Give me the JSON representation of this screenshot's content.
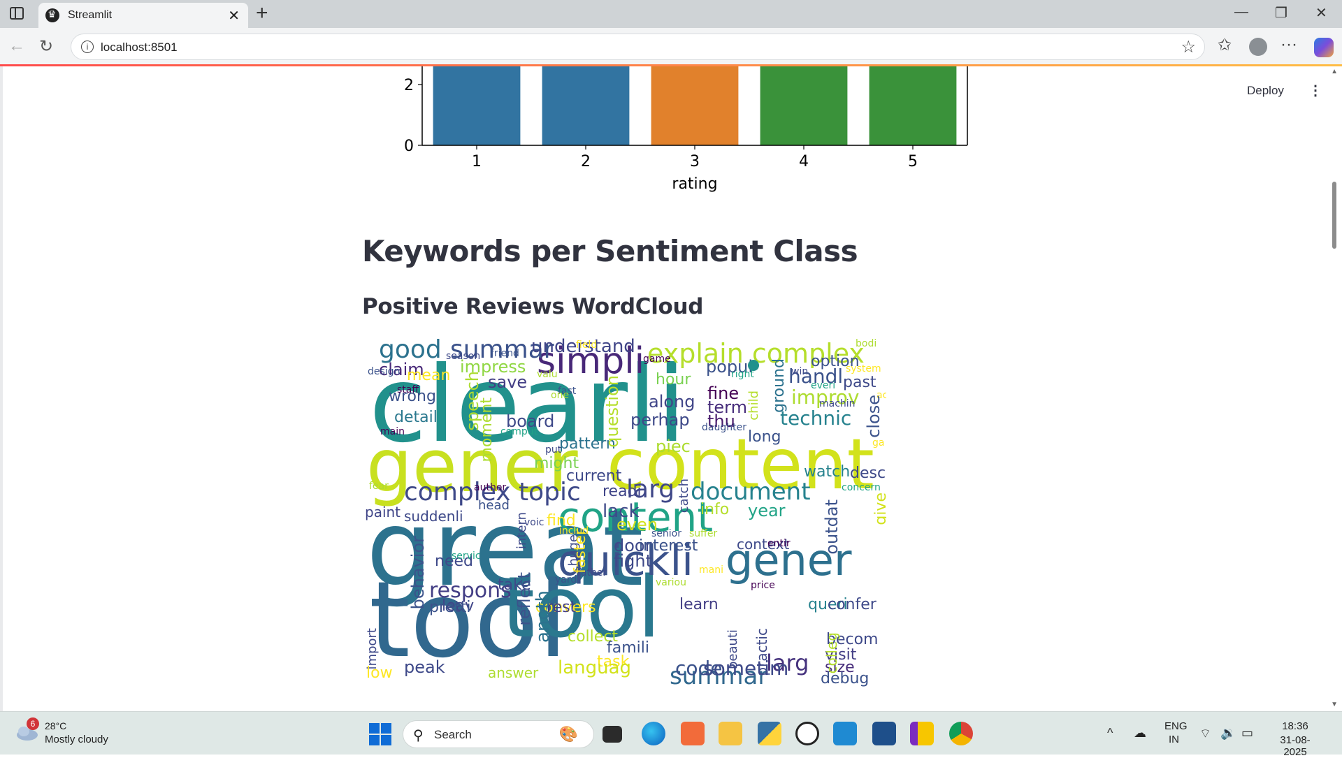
{
  "browser": {
    "tab_title": "Streamlit",
    "url": "localhost:8501"
  },
  "app": {
    "deploy_label": "Deploy",
    "heading": "Keywords per Sentiment Class",
    "subheading": "Positive Reviews WordCloud"
  },
  "chart_data": {
    "type": "bar",
    "categories": [
      "1",
      "2",
      "3",
      "4",
      "5"
    ],
    "values": [
      2.6,
      2.6,
      2.6,
      2.6,
      2.6
    ],
    "colors": [
      "#3274a1",
      "#3274a1",
      "#e1812c",
      "#3a923a",
      "#3a923a"
    ],
    "xlabel": "rating",
    "ylabel": "",
    "yticks": [
      "0",
      "2"
    ],
    "ylim": [
      0,
      2.6
    ],
    "note_partial": "top of chart scrolled out of view"
  },
  "wordcloud": {
    "words": [
      {
        "t": "clearli",
        "c": "#21918c"
      },
      {
        "t": "gener",
        "c": "#c8e020"
      },
      {
        "t": "content",
        "c": "#d2e21b"
      },
      {
        "t": "great",
        "c": "#2c728e"
      },
      {
        "t": "tool",
        "c": "#31688e"
      },
      {
        "t": "tool",
        "c": "#2a788e"
      },
      {
        "t": "gener",
        "c": "#2d708e"
      },
      {
        "t": "quickli",
        "c": "#3b528b"
      },
      {
        "t": "content",
        "c": "#20a386"
      },
      {
        "t": "simpli",
        "c": "#482878"
      },
      {
        "t": "explain complex",
        "c": "#b5de2b"
      },
      {
        "t": "complex topic",
        "c": "#3e4989"
      },
      {
        "t": "document",
        "c": "#26828e"
      },
      {
        "t": "larg",
        "c": "#3f4788"
      },
      {
        "t": "good",
        "c": "#2c728e"
      },
      {
        "t": "summar",
        "c": "#3b528b"
      },
      {
        "t": "summar",
        "c": "#31688e"
      },
      {
        "t": "larg",
        "c": "#46337e"
      },
      {
        "t": "respons",
        "c": "#433e85"
      },
      {
        "t": "understand",
        "c": "#404588"
      },
      {
        "t": "handl",
        "c": "#3b528b"
      },
      {
        "t": "improv",
        "c": "#addc30"
      },
      {
        "t": "technic",
        "c": "#26828e"
      },
      {
        "t": "option",
        "c": "#3b528b"
      },
      {
        "t": "past",
        "c": "#3e4989"
      },
      {
        "t": "claim",
        "c": "#482878"
      },
      {
        "t": "impress",
        "c": "#90d743"
      },
      {
        "t": "save",
        "c": "#433e85"
      },
      {
        "t": "hour",
        "c": "#7ad151"
      },
      {
        "t": "popul",
        "c": "#3b528b"
      },
      {
        "t": "fine",
        "c": "#440154"
      },
      {
        "t": "term",
        "c": "#472d7b"
      },
      {
        "t": "thu",
        "c": "#481a6c"
      },
      {
        "t": "along",
        "c": "#404588"
      },
      {
        "t": "perhap",
        "c": "#3e4989"
      },
      {
        "t": "mean",
        "c": "#fde725"
      },
      {
        "t": "wrong",
        "c": "#3b528b"
      },
      {
        "t": "detail",
        "c": "#2a788e"
      },
      {
        "t": "board",
        "c": "#3e4989"
      },
      {
        "t": "pattern",
        "c": "#2c728e"
      },
      {
        "t": "might",
        "c": "#7ad151"
      },
      {
        "t": "current",
        "c": "#3e4989"
      },
      {
        "t": "piec",
        "c": "#addc30"
      },
      {
        "t": "long",
        "c": "#3b528b"
      },
      {
        "t": "watch",
        "c": "#26828e"
      },
      {
        "t": "describ",
        "c": "#3e4989"
      },
      {
        "t": "readi",
        "c": "#404588"
      },
      {
        "t": "lack",
        "c": "#3e4989"
      },
      {
        "t": "info",
        "c": "#b5de2b"
      },
      {
        "t": "year",
        "c": "#20a386"
      },
      {
        "t": "paint",
        "c": "#404588"
      },
      {
        "t": "suddenli",
        "c": "#3e4989"
      },
      {
        "t": "head",
        "c": "#3b528b"
      },
      {
        "t": "find",
        "c": "#fde725"
      },
      {
        "t": "even",
        "c": "#d2e21b"
      },
      {
        "t": "door",
        "c": "#3e4989"
      },
      {
        "t": "fight",
        "c": "#3e4989"
      },
      {
        "t": "interest",
        "c": "#3b528b"
      },
      {
        "t": "context",
        "c": "#3e4989"
      },
      {
        "t": "need",
        "c": "#3e4989"
      },
      {
        "t": "take",
        "c": "#3e4989"
      },
      {
        "t": "leav",
        "c": "#404588"
      },
      {
        "t": "pretti",
        "c": "#3b528b"
      },
      {
        "t": "convers",
        "c": "#fde725"
      },
      {
        "t": "rest",
        "c": "#433e85"
      },
      {
        "t": "learn",
        "c": "#433e85"
      },
      {
        "t": "queri",
        "c": "#26828e"
      },
      {
        "t": "confer",
        "c": "#3e4989"
      },
      {
        "t": "collect",
        "c": "#b5de2b"
      },
      {
        "t": "famili",
        "c": "#3b528b"
      },
      {
        "t": "task",
        "c": "#fde725"
      },
      {
        "t": "becom",
        "c": "#3e4989"
      },
      {
        "t": "visit",
        "c": "#433e85"
      },
      {
        "t": "size",
        "c": "#472d7b"
      },
      {
        "t": "debug",
        "c": "#3b528b"
      },
      {
        "t": "low",
        "c": "#fde725"
      },
      {
        "t": "peak",
        "c": "#3e4989"
      },
      {
        "t": "answer",
        "c": "#addc30"
      },
      {
        "t": "languag",
        "c": "#d2e21b"
      },
      {
        "t": "code",
        "c": "#3b528b"
      },
      {
        "t": "sometim",
        "c": "#3e4989"
      },
      {
        "t": "help",
        "c": "#433e85"
      },
      {
        "t": "natur",
        "c": "#3b528b"
      },
      {
        "t": "summar",
        "c": "#2c728e"
      },
      {
        "t": "larg",
        "c": "#3e4989"
      }
    ],
    "small_words": [
      "season",
      "field",
      "friend",
      "bodi",
      "game",
      "right",
      "win",
      "system",
      "design",
      "valu",
      "staff",
      "everi",
      "machin",
      "actual",
      "fast",
      "one",
      "main",
      "comput",
      "put",
      "ga",
      "daughter",
      "fear",
      "author",
      "concern",
      "voic",
      "includ",
      "senior",
      "suffer",
      "entir",
      "servic",
      "father",
      "mani",
      "yard",
      "variou",
      "price"
    ],
    "vertical_words": [
      "speech",
      "moment",
      "question",
      "ground",
      "child",
      "close",
      "give",
      "outdat",
      "intern",
      "huge",
      "faster",
      "catch",
      "behavior",
      "reflect",
      "anoth",
      "import",
      "practic",
      "beauti",
      "colleg"
    ]
  },
  "taskbar": {
    "weather_badge": "6",
    "weather_temp": "28°C",
    "weather_desc": "Mostly cloudy",
    "search_placeholder": "Search",
    "lang_top": "ENG",
    "lang_bottom": "IN",
    "time": "18:36",
    "date": "31-08-2025"
  }
}
